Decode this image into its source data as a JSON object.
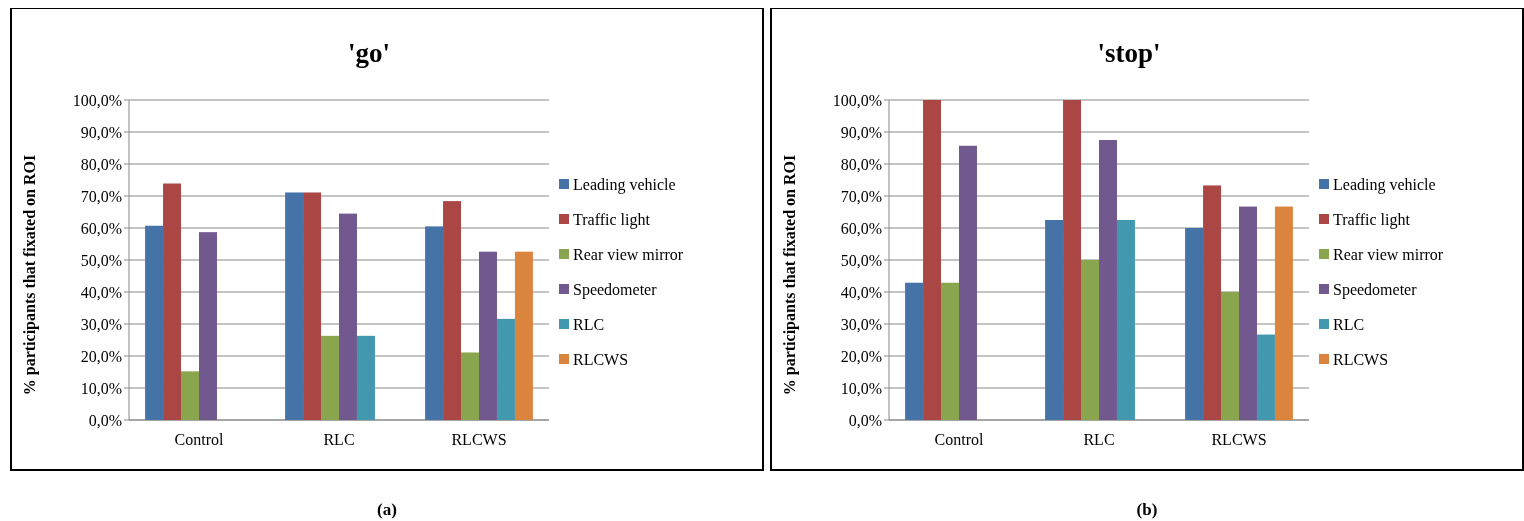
{
  "chart_data": [
    {
      "type": "bar",
      "title": "'go'",
      "ylabel": "% participants that fixated on ROI",
      "categories": [
        "Control",
        "RLC",
        "RLCWS"
      ],
      "series": [
        {
          "name": "Leading vehicle",
          "color": "#4572a7",
          "values": [
            60.7,
            71.1,
            60.5
          ]
        },
        {
          "name": "Traffic light",
          "color": "#aa4643",
          "values": [
            73.9,
            71.1,
            68.4
          ]
        },
        {
          "name": "Rear view mirror",
          "color": "#89a54e",
          "values": [
            15.2,
            26.3,
            21.1
          ]
        },
        {
          "name": "Speedometer",
          "color": "#71588f",
          "values": [
            58.7,
            64.5,
            52.6
          ]
        },
        {
          "name": "RLC",
          "color": "#4198af",
          "values": [
            null,
            26.3,
            31.6
          ]
        },
        {
          "name": "RLCWS",
          "color": "#db843d",
          "values": [
            null,
            null,
            52.6
          ]
        }
      ],
      "ylim": [
        0,
        100
      ],
      "yticks": [
        {
          "value": 0,
          "label": "0,0%"
        },
        {
          "value": 10,
          "label": "10,0%"
        },
        {
          "value": 20,
          "label": "20,0%"
        },
        {
          "value": 30,
          "label": "30,0%"
        },
        {
          "value": 40,
          "label": "40,0%"
        },
        {
          "value": 50,
          "label": "50,0%"
        },
        {
          "value": 60,
          "label": "60,0%"
        },
        {
          "value": 70,
          "label": "70,0%"
        },
        {
          "value": 80,
          "label": "80,0%"
        },
        {
          "value": 90,
          "label": "90,0%"
        },
        {
          "value": 100,
          "label": "100,0%"
        }
      ],
      "grid": "y",
      "legend": "right",
      "annotations": [
        "(a)"
      ]
    },
    {
      "type": "bar",
      "title": "'stop'",
      "ylabel": "% participants that fixated on ROI",
      "categories": [
        "Control",
        "RLC",
        "RLCWS"
      ],
      "series": [
        {
          "name": "Leading vehicle",
          "color": "#4572a7",
          "values": [
            42.9,
            62.5,
            60.0
          ]
        },
        {
          "name": "Traffic light",
          "color": "#aa4643",
          "values": [
            100,
            100,
            73.3
          ]
        },
        {
          "name": "Rear view mirror",
          "color": "#89a54e",
          "values": [
            42.9,
            50.0,
            40.0
          ]
        },
        {
          "name": "Speedometer",
          "color": "#71588f",
          "values": [
            85.7,
            87.5,
            66.7
          ]
        },
        {
          "name": "RLC",
          "color": "#4198af",
          "values": [
            null,
            62.5,
            26.7
          ]
        },
        {
          "name": "RLCWS",
          "color": "#db843d",
          "values": [
            null,
            null,
            66.7
          ]
        }
      ],
      "ylim": [
        0,
        100
      ],
      "yticks": [
        {
          "value": 0,
          "label": "0,0%"
        },
        {
          "value": 10,
          "label": "10,0%"
        },
        {
          "value": 20,
          "label": "20,0%"
        },
        {
          "value": 30,
          "label": "30,0%"
        },
        {
          "value": 40,
          "label": "40,0%"
        },
        {
          "value": 50,
          "label": "50,0%"
        },
        {
          "value": 60,
          "label": "60,0%"
        },
        {
          "value": 70,
          "label": "70,0%"
        },
        {
          "value": 80,
          "label": "80,0%"
        },
        {
          "value": 90,
          "label": "90,0%"
        },
        {
          "value": 100,
          "label": "100,0%"
        }
      ],
      "grid": "y",
      "legend": "right",
      "annotations": [
        "(b)"
      ]
    }
  ]
}
